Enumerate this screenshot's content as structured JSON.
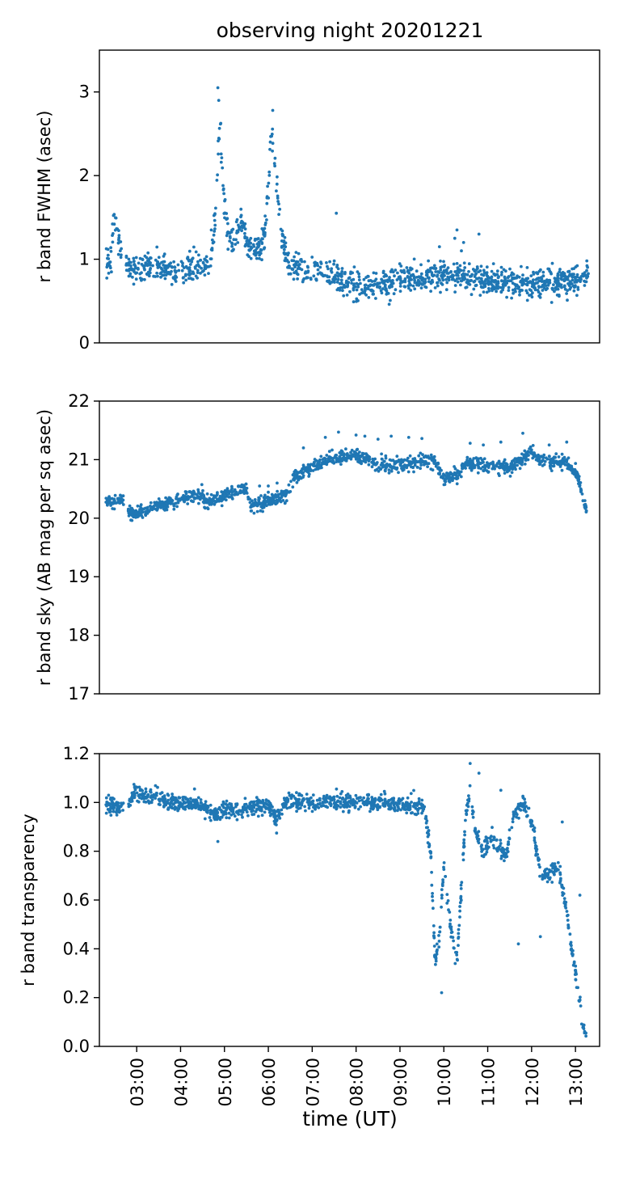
{
  "figure": {
    "title": "observing night 20201221"
  },
  "chart_data": {
    "type": "scatter",
    "title": "observing night 20201221",
    "marker_color": "#1f77b4",
    "shared_x": {
      "label": "time (UT)",
      "unit": "hours UT",
      "range": [
        2.15,
        13.55
      ],
      "tick_values": [
        3,
        4,
        5,
        6,
        7,
        8,
        9,
        10,
        11,
        12,
        13
      ],
      "tick_labels": [
        "03:00",
        "04:00",
        "05:00",
        "06:00",
        "07:00",
        "08:00",
        "09:00",
        "10:00",
        "11:00",
        "12:00",
        "13:00"
      ]
    },
    "panels": [
      {
        "name": "fwhm",
        "ylabel": "r band FWHM (asec)",
        "ylim": [
          0,
          3.5
        ],
        "yticks": [
          0,
          1,
          2,
          3
        ],
        "ytick_labels": [
          "0",
          "1",
          "2",
          "3"
        ],
        "trend": [
          [
            2.3,
            0.9
          ],
          [
            2.4,
            1.0
          ],
          [
            2.5,
            1.52
          ],
          [
            2.6,
            1.2
          ],
          [
            2.7,
            0.92
          ],
          [
            2.85,
            0.88
          ],
          [
            3.0,
            0.9
          ],
          [
            3.2,
            0.9
          ],
          [
            3.5,
            0.9
          ],
          [
            3.8,
            0.85
          ],
          [
            4.0,
            0.82
          ],
          [
            4.2,
            0.88
          ],
          [
            4.5,
            0.92
          ],
          [
            4.7,
            1.0
          ],
          [
            4.8,
            1.5
          ],
          [
            4.85,
            2.2
          ],
          [
            4.9,
            2.7
          ],
          [
            4.95,
            2.0
          ],
          [
            5.0,
            1.6
          ],
          [
            5.1,
            1.3
          ],
          [
            5.2,
            1.22
          ],
          [
            5.3,
            1.3
          ],
          [
            5.4,
            1.45
          ],
          [
            5.5,
            1.2
          ],
          [
            5.6,
            1.12
          ],
          [
            5.7,
            1.1
          ],
          [
            5.8,
            1.12
          ],
          [
            5.9,
            1.25
          ],
          [
            6.0,
            1.8
          ],
          [
            6.05,
            2.4
          ],
          [
            6.1,
            2.5
          ],
          [
            6.15,
            2.1
          ],
          [
            6.2,
            1.8
          ],
          [
            6.3,
            1.3
          ],
          [
            6.4,
            1.0
          ],
          [
            6.5,
            0.92
          ],
          [
            6.7,
            0.9
          ],
          [
            7.0,
            0.85
          ],
          [
            7.5,
            0.8
          ],
          [
            8.0,
            0.7
          ],
          [
            8.5,
            0.68
          ],
          [
            9.0,
            0.78
          ],
          [
            9.5,
            0.78
          ],
          [
            10.0,
            0.82
          ],
          [
            10.5,
            0.78
          ],
          [
            11.0,
            0.75
          ],
          [
            11.5,
            0.72
          ],
          [
            12.0,
            0.72
          ],
          [
            12.5,
            0.72
          ],
          [
            13.0,
            0.74
          ],
          [
            13.3,
            0.82
          ]
        ],
        "scatter_width": 0.08,
        "outliers": [
          [
            4.85,
            3.05
          ],
          [
            4.87,
            2.9
          ],
          [
            6.1,
            2.78
          ],
          [
            7.55,
            1.55
          ],
          [
            10.8,
            1.3
          ],
          [
            10.3,
            1.35
          ],
          [
            10.25,
            1.25
          ],
          [
            10.4,
            1.1
          ],
          [
            4.7,
            1.35
          ],
          [
            10.45,
            1.2
          ],
          [
            9.9,
            1.15
          ],
          [
            11.9,
            0.9
          ]
        ],
        "gaps": [
          [
            2.65,
            2.75
          ]
        ]
      },
      {
        "name": "sky",
        "ylabel": "r band sky (AB mag per sq asec)",
        "ylim": [
          17,
          22
        ],
        "yticks": [
          17,
          18,
          19,
          20,
          21,
          22
        ],
        "ytick_labels": [
          "17",
          "18",
          "19",
          "20",
          "21",
          "22"
        ],
        "trend": [
          [
            2.3,
            20.3
          ],
          [
            2.5,
            20.28
          ],
          [
            2.7,
            20.3
          ],
          [
            2.8,
            20.1
          ],
          [
            3.0,
            20.1
          ],
          [
            3.2,
            20.15
          ],
          [
            3.5,
            20.22
          ],
          [
            4.0,
            20.32
          ],
          [
            4.5,
            20.42
          ],
          [
            4.55,
            20.25
          ],
          [
            5.0,
            20.38
          ],
          [
            5.5,
            20.5
          ],
          [
            5.6,
            20.22
          ],
          [
            6.0,
            20.28
          ],
          [
            6.4,
            20.38
          ],
          [
            6.6,
            20.7
          ],
          [
            7.0,
            20.88
          ],
          [
            7.5,
            21.02
          ],
          [
            8.0,
            21.1
          ],
          [
            8.5,
            20.92
          ],
          [
            9.0,
            20.9
          ],
          [
            9.5,
            20.98
          ],
          [
            9.8,
            20.95
          ],
          [
            10.0,
            20.68
          ],
          [
            10.3,
            20.72
          ],
          [
            10.5,
            20.95
          ],
          [
            11.0,
            20.9
          ],
          [
            11.5,
            20.85
          ],
          [
            11.8,
            21.0
          ],
          [
            12.0,
            21.15
          ],
          [
            12.2,
            20.98
          ],
          [
            12.5,
            20.95
          ],
          [
            12.8,
            20.95
          ],
          [
            13.0,
            20.78
          ],
          [
            13.1,
            20.6
          ],
          [
            13.25,
            20.15
          ]
        ],
        "scatter_width": 0.04,
        "outliers": [
          [
            7.6,
            21.47
          ],
          [
            8.0,
            21.42
          ],
          [
            8.2,
            21.4
          ],
          [
            8.5,
            21.35
          ],
          [
            8.8,
            21.4
          ],
          [
            9.2,
            21.38
          ],
          [
            9.5,
            21.36
          ],
          [
            10.6,
            21.28
          ],
          [
            10.9,
            21.25
          ],
          [
            11.3,
            21.3
          ],
          [
            11.8,
            21.45
          ],
          [
            12.4,
            21.25
          ],
          [
            12.8,
            21.3
          ],
          [
            6.8,
            21.2
          ],
          [
            7.3,
            21.38
          ],
          [
            6.2,
            20.6
          ],
          [
            6.0,
            20.55
          ],
          [
            5.8,
            20.55
          ]
        ],
        "gaps": [
          [
            2.7,
            2.8
          ]
        ]
      },
      {
        "name": "transparency",
        "ylabel": "r band transparency",
        "ylim": [
          0.0,
          1.2
        ],
        "yticks": [
          0.0,
          0.2,
          0.4,
          0.6,
          0.8,
          1.0,
          1.2
        ],
        "ytick_labels": [
          "0.0",
          "0.2",
          "0.4",
          "0.6",
          "0.8",
          "1.0",
          "1.2"
        ],
        "trend": [
          [
            2.3,
            0.99
          ],
          [
            2.6,
            0.98
          ],
          [
            2.85,
            1.0
          ],
          [
            2.95,
            1.05
          ],
          [
            3.2,
            1.02
          ],
          [
            3.5,
            1.03
          ],
          [
            3.7,
            1.0
          ],
          [
            4.0,
            1.0
          ],
          [
            4.5,
            0.99
          ],
          [
            4.8,
            0.95
          ],
          [
            5.0,
            0.97
          ],
          [
            5.5,
            0.97
          ],
          [
            5.7,
            0.99
          ],
          [
            6.0,
            0.98
          ],
          [
            6.2,
            0.93
          ],
          [
            6.4,
            1.0
          ],
          [
            7.0,
            1.0
          ],
          [
            8.0,
            1.0
          ],
          [
            9.0,
            0.99
          ],
          [
            9.55,
            0.98
          ],
          [
            9.7,
            0.8
          ],
          [
            9.8,
            0.35
          ],
          [
            9.9,
            0.45
          ],
          [
            10.0,
            0.75
          ],
          [
            10.1,
            0.55
          ],
          [
            10.3,
            0.35
          ],
          [
            10.5,
            0.95
          ],
          [
            10.6,
            1.05
          ],
          [
            10.7,
            0.9
          ],
          [
            10.9,
            0.8
          ],
          [
            11.1,
            0.85
          ],
          [
            11.4,
            0.78
          ],
          [
            11.6,
            0.95
          ],
          [
            11.8,
            1.0
          ],
          [
            12.0,
            0.92
          ],
          [
            12.2,
            0.72
          ],
          [
            12.4,
            0.7
          ],
          [
            12.6,
            0.75
          ],
          [
            12.8,
            0.55
          ],
          [
            13.0,
            0.3
          ],
          [
            13.15,
            0.12
          ],
          [
            13.25,
            0.03
          ]
        ],
        "scatter_width": 0.05,
        "outliers": [
          [
            4.85,
            0.84
          ],
          [
            10.6,
            1.16
          ],
          [
            11.7,
            0.42
          ],
          [
            12.7,
            0.92
          ],
          [
            12.2,
            0.45
          ],
          [
            9.95,
            0.22
          ],
          [
            10.8,
            1.12
          ],
          [
            13.1,
            0.62
          ],
          [
            11.3,
            1.05
          ]
        ],
        "gaps": [
          [
            2.7,
            2.8
          ]
        ]
      }
    ]
  }
}
